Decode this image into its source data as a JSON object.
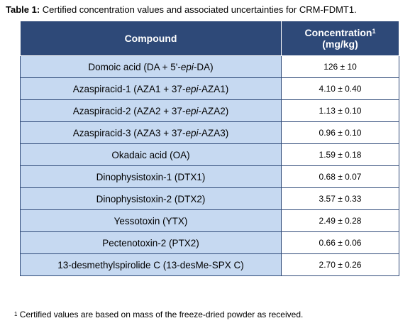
{
  "caption": {
    "label": "Table 1:",
    "text": " Certified concentration values and associated uncertainties for CRM-FDMT1."
  },
  "table": {
    "headers": {
      "compound": "Compound",
      "concentration_line1": "Concentration",
      "concentration_sup": "1",
      "concentration_line2": "(mg/kg)"
    },
    "rows": [
      {
        "pre": "Domoic acid (DA + 5'-",
        "ital": "epi",
        "post": "-DA)",
        "value": "126 ± 10"
      },
      {
        "pre": "Azaspiracid-1 (AZA1 + 37-",
        "ital": "epi",
        "post": "-AZA1)",
        "value": "4.10 ± 0.40"
      },
      {
        "pre": "Azaspiracid-2 (AZA2 + 37-",
        "ital": "epi",
        "post": "-AZA2)",
        "value": "1.13 ± 0.10"
      },
      {
        "pre": "Azaspiracid-3 (AZA3 + 37-",
        "ital": "epi",
        "post": "-AZA3)",
        "value": "0.96 ± 0.10"
      },
      {
        "pre": "Okadaic acid (OA)",
        "ital": "",
        "post": "",
        "value": "1.59 ± 0.18"
      },
      {
        "pre": "Dinophysistoxin-1 (DTX1)",
        "ital": "",
        "post": "",
        "value": "0.68 ± 0.07"
      },
      {
        "pre": "Dinophysistoxin-2 (DTX2)",
        "ital": "",
        "post": "",
        "value": "3.57 ± 0.33"
      },
      {
        "pre": "Yessotoxin (YTX)",
        "ital": "",
        "post": "",
        "value": "2.49 ± 0.28"
      },
      {
        "pre": "Pectenotoxin-2 (PTX2)",
        "ital": "",
        "post": "",
        "value": "0.66 ± 0.06"
      },
      {
        "pre": "13-desmethylspirolide C (13-desMe-SPX C)",
        "ital": "",
        "post": "",
        "value": "2.70 ± 0.26"
      }
    ]
  },
  "footnote": {
    "marker": "1",
    "text": " Certified values are based on mass of the freeze-dried powder as received."
  },
  "colors": {
    "header_bg": "#2e4978",
    "compound_bg": "#c6d9f1",
    "border": "#2e4978"
  }
}
